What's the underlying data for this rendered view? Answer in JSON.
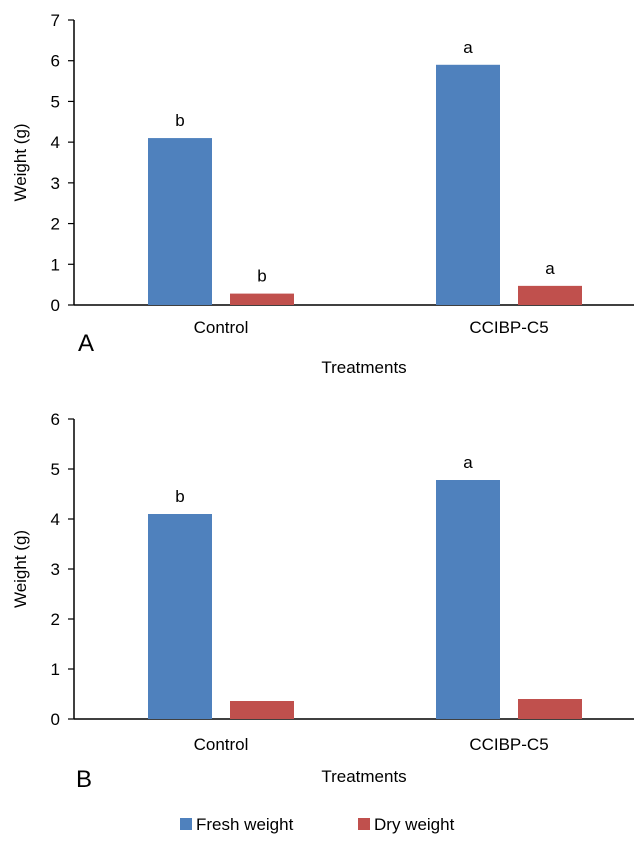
{
  "chart_data": [
    {
      "type": "bar",
      "panel_label": "A",
      "categories": [
        "Control",
        "CCIBP-C5"
      ],
      "series": [
        {
          "name": "Fresh weight",
          "values": [
            4.1,
            5.9
          ],
          "significance": [
            "b",
            "a"
          ]
        },
        {
          "name": "Dry weight",
          "values": [
            0.28,
            0.47
          ],
          "significance": [
            "b",
            "a"
          ]
        }
      ],
      "xlabel": "Treatments",
      "ylabel": "Weight (g)",
      "ylim": [
        0,
        7
      ],
      "yticks": [
        "0",
        "1",
        "2",
        "3",
        "4",
        "5",
        "6",
        "7"
      ],
      "grid": false
    },
    {
      "type": "bar",
      "panel_label": "B",
      "categories": [
        "Control",
        "CCIBP-C5"
      ],
      "series": [
        {
          "name": "Fresh weight",
          "values": [
            4.1,
            4.78
          ],
          "significance": [
            "b",
            "a"
          ]
        },
        {
          "name": "Dry weight",
          "values": [
            0.36,
            0.4
          ],
          "significance": [
            "",
            ""
          ]
        }
      ],
      "xlabel": "Treatments",
      "ylabel": "Weight (g)",
      "ylim": [
        0,
        6
      ],
      "yticks": [
        "0",
        "1",
        "2",
        "3",
        "4",
        "5",
        "6"
      ],
      "grid": false
    }
  ],
  "legend": {
    "placement": "bottom-center",
    "items": [
      {
        "label": "Fresh weight",
        "color": "#4f81bd"
      },
      {
        "label": "Dry weight",
        "color": "#c0504d"
      }
    ]
  },
  "colors": {
    "fresh": "#4f81bd",
    "dry": "#c0504d",
    "axis": "#000000"
  }
}
